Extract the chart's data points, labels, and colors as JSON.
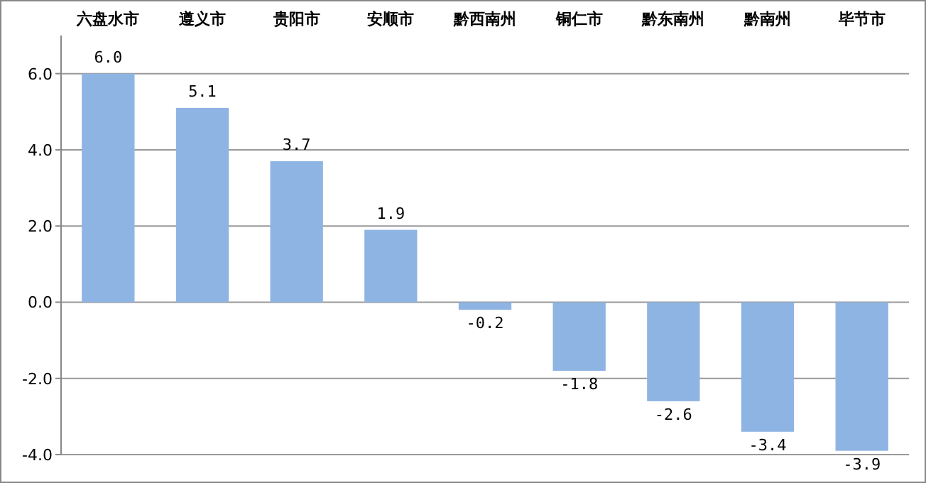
{
  "chart_data": {
    "type": "bar",
    "categories": [
      "六盘水市",
      "遵义市",
      "贵阳市",
      "安顺市",
      "黔西南州",
      "铜仁市",
      "黔东南州",
      "黔南州",
      "毕节市"
    ],
    "values": [
      6.0,
      5.1,
      3.7,
      1.9,
      -0.2,
      -1.8,
      -2.6,
      -3.4,
      -3.9
    ],
    "value_labels": [
      "6.0",
      "5.1",
      "3.7",
      "1.9",
      "-0.2",
      "-1.8",
      "-2.6",
      "-3.4",
      "-3.9"
    ],
    "color": "#8eb4e3",
    "ylim": [
      -4,
      7
    ],
    "yticks": [
      {
        "value": -4,
        "label": "-4.0"
      },
      {
        "value": -2,
        "label": "-2.0"
      },
      {
        "value": 0,
        "label": "0.0"
      },
      {
        "value": 2,
        "label": "2.0"
      },
      {
        "value": 4,
        "label": "4.0"
      },
      {
        "value": 6,
        "label": "6.0"
      }
    ],
    "grid": "y"
  }
}
